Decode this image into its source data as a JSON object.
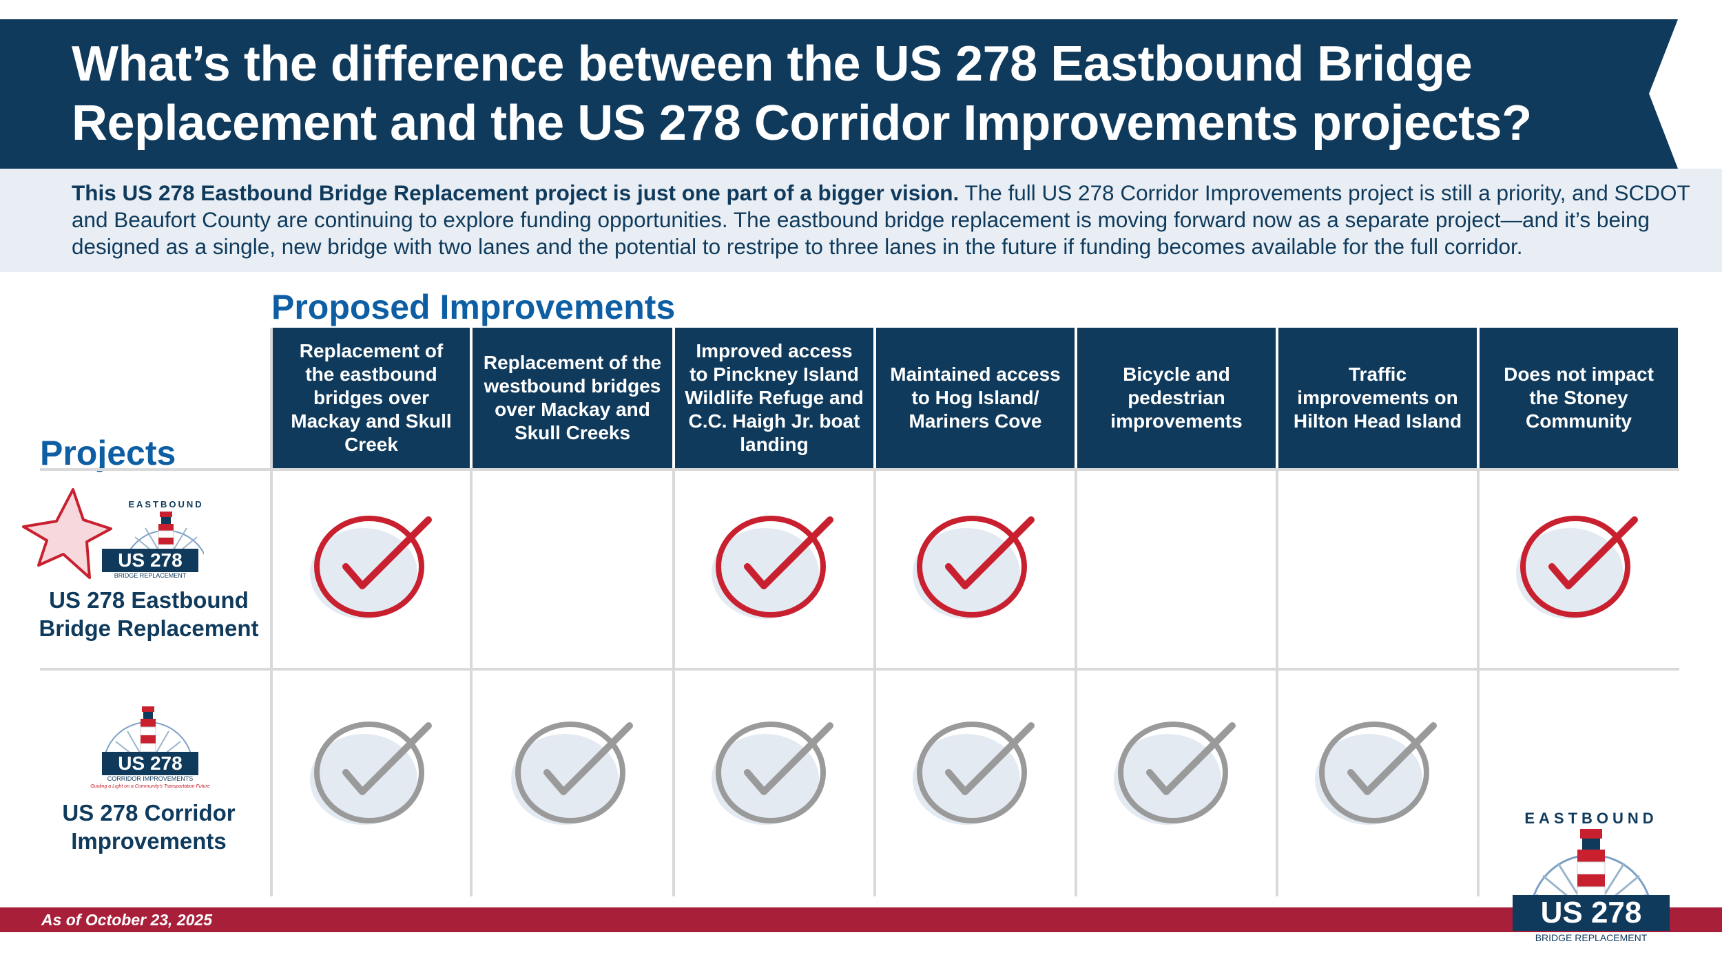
{
  "header": {
    "title": "What’s the difference between the US 278 Eastbound Bridge Replacement and the US 278 Corridor Improvements projects?"
  },
  "intro": {
    "lead": "This US 278 Eastbound Bridge Replacement project is just one part of a bigger vision.",
    "body": " The full US 278 Corridor Improvements project is still a priority, and SCDOT and Beaufort County are continuing to explore funding opportunities. The eastbound bridge replacement is moving forward now as a separate project—and it’s being designed as a single, new bridge with two lanes and the potential to restripe to three lanes in the future if funding becomes available for the full corridor."
  },
  "table": {
    "proposed_heading": "Proposed Improvements",
    "projects_heading": "Projects",
    "columns": [
      "Replacement of the eastbound bridges over Mackay and Skull Creek",
      "Replacement of the westbound bridges over Mackay and Skull Creeks",
      "Improved access to Pinckney Island Wildlife Refuge and C.C. Haigh Jr. boat landing",
      "Maintained access to Hog Island/ Mariners Cove",
      "Bicycle and pedestrian improvements",
      "Traffic improvements on Hilton Head Island",
      "Does not impact the Stoney Community"
    ],
    "rows": [
      {
        "label": "US 278 Eastbound Bridge Replacement",
        "checks": [
          true,
          false,
          true,
          true,
          false,
          false,
          true
        ],
        "style": "red"
      },
      {
        "label": "US 278 Corridor Improvements",
        "checks": [
          true,
          true,
          true,
          true,
          true,
          true,
          false
        ],
        "style": "gray"
      }
    ]
  },
  "logos": {
    "eastbound_top": "EASTBOUND",
    "route": "US 278",
    "bridge_sub": "BRIDGE REPLACEMENT",
    "corridor_sub": "CORRIDOR IMPROVEMENTS",
    "corridor_tagline": "Guiding a Light on a Community's Transportation Future"
  },
  "footer": {
    "date": "As of October 23, 2025"
  },
  "colors": {
    "navy": "#0f3a5c",
    "blue": "#0e5ea3",
    "red": "#c8202f",
    "gray": "#9a9a9a",
    "footer": "#a81f3a"
  }
}
